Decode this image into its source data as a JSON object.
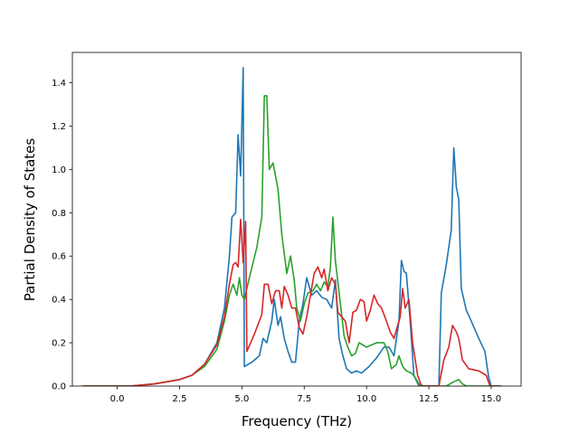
{
  "chart_data": {
    "type": "line",
    "xlabel": "Frequency (THz)",
    "ylabel": "Partial Density of States",
    "xlim": [
      -1.8,
      16.2
    ],
    "ylim": [
      0.0,
      1.54
    ],
    "xticks": [
      0.0,
      2.5,
      5.0,
      7.5,
      10.0,
      12.5,
      15.0
    ],
    "xtick_labels": [
      "0.0",
      "2.5",
      "5.0",
      "7.5",
      "10.0",
      "12.5",
      "15.0"
    ],
    "yticks": [
      0.0,
      0.2,
      0.4,
      0.6,
      0.8,
      1.0,
      1.2,
      1.4
    ],
    "ytick_labels": [
      "0.0",
      "0.2",
      "0.4",
      "0.6",
      "0.8",
      "1.0",
      "1.2",
      "1.4"
    ],
    "grid": false,
    "series": [
      {
        "color": "#1f77b4",
        "points": [
          [
            -1.4,
            0.0
          ],
          [
            0.5,
            0.0
          ],
          [
            1.5,
            0.01
          ],
          [
            2.5,
            0.03
          ],
          [
            3.0,
            0.05
          ],
          [
            3.5,
            0.1
          ],
          [
            4.0,
            0.2
          ],
          [
            4.3,
            0.36
          ],
          [
            4.5,
            0.6
          ],
          [
            4.6,
            0.78
          ],
          [
            4.75,
            0.8
          ],
          [
            4.85,
            1.16
          ],
          [
            4.95,
            0.97
          ],
          [
            5.05,
            1.47
          ],
          [
            5.1,
            0.09
          ],
          [
            5.4,
            0.11
          ],
          [
            5.7,
            0.14
          ],
          [
            5.85,
            0.22
          ],
          [
            6.0,
            0.2
          ],
          [
            6.2,
            0.3
          ],
          [
            6.3,
            0.4
          ],
          [
            6.45,
            0.28
          ],
          [
            6.55,
            0.32
          ],
          [
            6.7,
            0.22
          ],
          [
            6.85,
            0.16
          ],
          [
            7.0,
            0.11
          ],
          [
            7.15,
            0.11
          ],
          [
            7.3,
            0.3
          ],
          [
            7.45,
            0.38
          ],
          [
            7.6,
            0.5
          ],
          [
            7.8,
            0.42
          ],
          [
            8.0,
            0.44
          ],
          [
            8.2,
            0.41
          ],
          [
            8.4,
            0.4
          ],
          [
            8.6,
            0.36
          ],
          [
            8.75,
            0.49
          ],
          [
            8.9,
            0.22
          ],
          [
            9.05,
            0.14
          ],
          [
            9.2,
            0.08
          ],
          [
            9.4,
            0.06
          ],
          [
            9.6,
            0.07
          ],
          [
            9.8,
            0.06
          ],
          [
            10.1,
            0.09
          ],
          [
            10.4,
            0.13
          ],
          [
            10.7,
            0.18
          ],
          [
            10.9,
            0.18
          ],
          [
            11.1,
            0.14
          ],
          [
            11.3,
            0.3
          ],
          [
            11.4,
            0.58
          ],
          [
            11.5,
            0.53
          ],
          [
            11.6,
            0.52
          ],
          [
            11.75,
            0.3
          ],
          [
            11.9,
            0.05
          ],
          [
            12.1,
            0.0
          ],
          [
            12.9,
            0.0
          ],
          [
            13.0,
            0.43
          ],
          [
            13.2,
            0.56
          ],
          [
            13.4,
            0.72
          ],
          [
            13.5,
            1.1
          ],
          [
            13.6,
            0.92
          ],
          [
            13.7,
            0.86
          ],
          [
            13.8,
            0.45
          ],
          [
            14.0,
            0.35
          ],
          [
            14.2,
            0.3
          ],
          [
            14.5,
            0.22
          ],
          [
            14.75,
            0.16
          ],
          [
            14.9,
            0.04
          ],
          [
            15.0,
            0.0
          ],
          [
            15.4,
            0.0
          ]
        ]
      },
      {
        "color": "#2ca02c",
        "points": [
          [
            -1.4,
            0.0
          ],
          [
            0.5,
            0.0
          ],
          [
            1.5,
            0.01
          ],
          [
            2.5,
            0.03
          ],
          [
            3.0,
            0.05
          ],
          [
            3.5,
            0.09
          ],
          [
            4.0,
            0.17
          ],
          [
            4.3,
            0.3
          ],
          [
            4.5,
            0.42
          ],
          [
            4.65,
            0.47
          ],
          [
            4.8,
            0.42
          ],
          [
            4.9,
            0.5
          ],
          [
            5.0,
            0.42
          ],
          [
            5.1,
            0.4
          ],
          [
            5.3,
            0.5
          ],
          [
            5.6,
            0.64
          ],
          [
            5.8,
            0.78
          ],
          [
            5.9,
            1.34
          ],
          [
            6.0,
            1.34
          ],
          [
            6.1,
            1.0
          ],
          [
            6.25,
            1.03
          ],
          [
            6.45,
            0.91
          ],
          [
            6.6,
            0.7
          ],
          [
            6.8,
            0.52
          ],
          [
            6.95,
            0.6
          ],
          [
            7.1,
            0.49
          ],
          [
            7.2,
            0.36
          ],
          [
            7.35,
            0.3
          ],
          [
            7.5,
            0.38
          ],
          [
            7.65,
            0.43
          ],
          [
            7.85,
            0.44
          ],
          [
            8.0,
            0.47
          ],
          [
            8.15,
            0.44
          ],
          [
            8.3,
            0.48
          ],
          [
            8.45,
            0.46
          ],
          [
            8.55,
            0.55
          ],
          [
            8.65,
            0.78
          ],
          [
            8.75,
            0.58
          ],
          [
            8.85,
            0.48
          ],
          [
            9.0,
            0.33
          ],
          [
            9.1,
            0.23
          ],
          [
            9.25,
            0.18
          ],
          [
            9.4,
            0.14
          ],
          [
            9.55,
            0.15
          ],
          [
            9.7,
            0.2
          ],
          [
            9.85,
            0.19
          ],
          [
            10.0,
            0.18
          ],
          [
            10.2,
            0.19
          ],
          [
            10.4,
            0.2
          ],
          [
            10.7,
            0.2
          ],
          [
            10.85,
            0.16
          ],
          [
            11.0,
            0.08
          ],
          [
            11.2,
            0.1
          ],
          [
            11.3,
            0.14
          ],
          [
            11.45,
            0.09
          ],
          [
            11.6,
            0.07
          ],
          [
            11.8,
            0.06
          ],
          [
            11.95,
            0.04
          ],
          [
            12.1,
            0.01
          ],
          [
            12.3,
            0.0
          ],
          [
            13.2,
            0.0
          ],
          [
            13.5,
            0.02
          ],
          [
            13.7,
            0.03
          ],
          [
            13.85,
            0.01
          ],
          [
            14.0,
            0.0
          ],
          [
            15.4,
            0.0
          ]
        ]
      },
      {
        "color": "#d62728",
        "points": [
          [
            -1.4,
            0.0
          ],
          [
            0.5,
            0.0
          ],
          [
            1.5,
            0.01
          ],
          [
            2.5,
            0.03
          ],
          [
            3.0,
            0.05
          ],
          [
            3.5,
            0.1
          ],
          [
            4.0,
            0.19
          ],
          [
            4.3,
            0.32
          ],
          [
            4.5,
            0.47
          ],
          [
            4.65,
            0.56
          ],
          [
            4.75,
            0.57
          ],
          [
            4.85,
            0.55
          ],
          [
            4.95,
            0.77
          ],
          [
            5.05,
            0.57
          ],
          [
            5.15,
            0.76
          ],
          [
            5.2,
            0.16
          ],
          [
            5.5,
            0.24
          ],
          [
            5.8,
            0.33
          ],
          [
            5.9,
            0.47
          ],
          [
            6.05,
            0.47
          ],
          [
            6.2,
            0.38
          ],
          [
            6.35,
            0.44
          ],
          [
            6.5,
            0.44
          ],
          [
            6.6,
            0.36
          ],
          [
            6.7,
            0.46
          ],
          [
            6.85,
            0.42
          ],
          [
            7.0,
            0.36
          ],
          [
            7.15,
            0.36
          ],
          [
            7.3,
            0.27
          ],
          [
            7.45,
            0.24
          ],
          [
            7.6,
            0.32
          ],
          [
            7.75,
            0.42
          ],
          [
            7.9,
            0.52
          ],
          [
            8.05,
            0.55
          ],
          [
            8.2,
            0.5
          ],
          [
            8.3,
            0.54
          ],
          [
            8.45,
            0.44
          ],
          [
            8.6,
            0.5
          ],
          [
            8.75,
            0.47
          ],
          [
            8.85,
            0.34
          ],
          [
            9.0,
            0.32
          ],
          [
            9.15,
            0.3
          ],
          [
            9.3,
            0.2
          ],
          [
            9.45,
            0.34
          ],
          [
            9.6,
            0.35
          ],
          [
            9.75,
            0.4
          ],
          [
            9.9,
            0.39
          ],
          [
            10.0,
            0.3
          ],
          [
            10.15,
            0.35
          ],
          [
            10.3,
            0.42
          ],
          [
            10.45,
            0.38
          ],
          [
            10.6,
            0.36
          ],
          [
            10.8,
            0.3
          ],
          [
            10.95,
            0.25
          ],
          [
            11.1,
            0.22
          ],
          [
            11.25,
            0.28
          ],
          [
            11.35,
            0.32
          ],
          [
            11.45,
            0.45
          ],
          [
            11.55,
            0.36
          ],
          [
            11.7,
            0.4
          ],
          [
            11.85,
            0.2
          ],
          [
            12.05,
            0.05
          ],
          [
            12.2,
            0.0
          ],
          [
            12.9,
            0.0
          ],
          [
            13.1,
            0.12
          ],
          [
            13.3,
            0.18
          ],
          [
            13.45,
            0.28
          ],
          [
            13.6,
            0.25
          ],
          [
            13.7,
            0.22
          ],
          [
            13.85,
            0.12
          ],
          [
            14.1,
            0.08
          ],
          [
            14.5,
            0.07
          ],
          [
            14.8,
            0.05
          ],
          [
            14.95,
            0.0
          ],
          [
            15.4,
            0.0
          ]
        ]
      }
    ]
  }
}
